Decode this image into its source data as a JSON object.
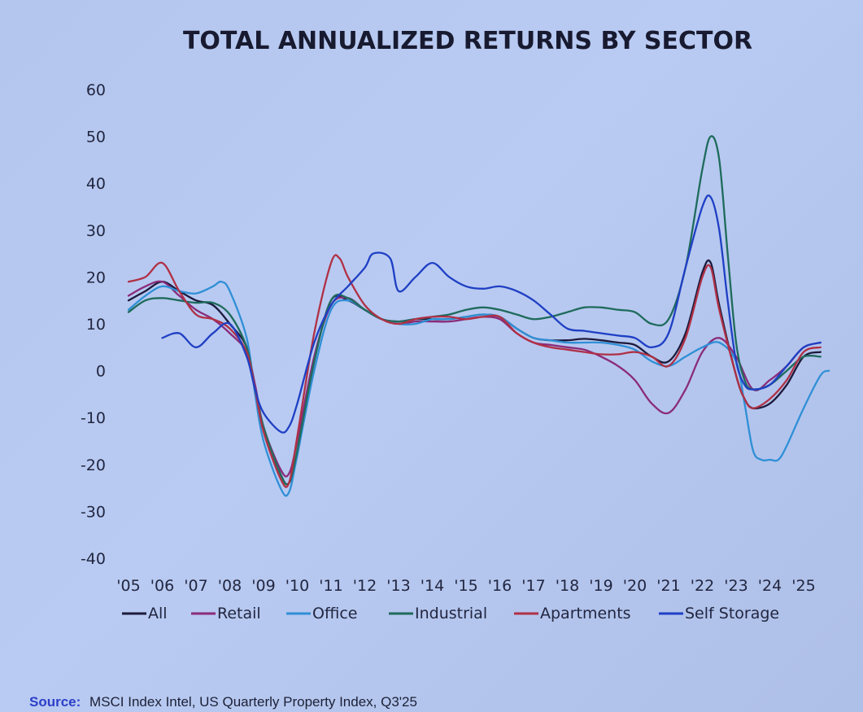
{
  "chart_data": {
    "type": "line",
    "title": "TOTAL ANNUALIZED RETURNS BY SECTOR",
    "xlabel": "",
    "ylabel": "",
    "ylim": [
      -40,
      60
    ],
    "yticks": [
      "60",
      "50",
      "40",
      "30",
      "20",
      "10",
      "0",
      "-10",
      "-20",
      "-30",
      "-40"
    ],
    "ytick_values": [
      60,
      50,
      40,
      30,
      20,
      10,
      0,
      -10,
      -20,
      -30,
      -40
    ],
    "xlim": [
      2005,
      2025.75
    ],
    "xticks": [
      "'05",
      "'06",
      "'07",
      "'08",
      "'09",
      "'10",
      "'11",
      "'12",
      "'13",
      "'14",
      "'15",
      "'16",
      "'17",
      "'18",
      "'19",
      "'20",
      "'21",
      "'22",
      "'23",
      "'24",
      "'25"
    ],
    "xtick_values": [
      2005,
      2006,
      2007,
      2008,
      2009,
      2010,
      2011,
      2012,
      2013,
      2014,
      2015,
      2016,
      2017,
      2018,
      2019,
      2020,
      2021,
      2022,
      2023,
      2024,
      2025
    ],
    "grid": false,
    "legend_position": "bottom",
    "series": [
      {
        "name": "All",
        "color": "#1c1a3c",
        "points": [
          [
            2005,
            15
          ],
          [
            2005.5,
            17
          ],
          [
            2006,
            19
          ],
          [
            2006.5,
            17
          ],
          [
            2007,
            15
          ],
          [
            2007.5,
            14
          ],
          [
            2008,
            10
          ],
          [
            2008.5,
            5
          ],
          [
            2008.75,
            -4
          ],
          [
            2009,
            -12
          ],
          [
            2009.5,
            -22
          ],
          [
            2009.75,
            -24
          ],
          [
            2010,
            -18
          ],
          [
            2010.5,
            2
          ],
          [
            2011,
            15
          ],
          [
            2011.5,
            15
          ],
          [
            2012,
            13
          ],
          [
            2012.5,
            11
          ],
          [
            2013,
            10.5
          ],
          [
            2013.5,
            11
          ],
          [
            2014,
            11
          ],
          [
            2014.5,
            11
          ],
          [
            2015,
            11.5
          ],
          [
            2015.5,
            12
          ],
          [
            2016,
            11.5
          ],
          [
            2016.5,
            9
          ],
          [
            2017,
            7
          ],
          [
            2017.5,
            6.5
          ],
          [
            2018,
            6.5
          ],
          [
            2018.5,
            6.8
          ],
          [
            2019,
            6.5
          ],
          [
            2019.5,
            6
          ],
          [
            2020,
            5.5
          ],
          [
            2020.5,
            3
          ],
          [
            2021,
            2
          ],
          [
            2021.5,
            8
          ],
          [
            2022,
            21
          ],
          [
            2022.25,
            23
          ],
          [
            2022.5,
            14
          ],
          [
            2023,
            -1
          ],
          [
            2023.25,
            -6
          ],
          [
            2023.5,
            -8
          ],
          [
            2024,
            -7
          ],
          [
            2024.5,
            -3
          ],
          [
            2025,
            3
          ],
          [
            2025.5,
            4
          ]
        ]
      },
      {
        "name": "Retail",
        "color": "#8a2b7a",
        "points": [
          [
            2005,
            16
          ],
          [
            2005.5,
            18
          ],
          [
            2006,
            19
          ],
          [
            2006.5,
            16
          ],
          [
            2007,
            13
          ],
          [
            2007.5,
            11
          ],
          [
            2008,
            8
          ],
          [
            2008.5,
            4
          ],
          [
            2008.75,
            -3
          ],
          [
            2009,
            -12
          ],
          [
            2009.5,
            -21
          ],
          [
            2009.75,
            -22
          ],
          [
            2010,
            -15
          ],
          [
            2010.5,
            3
          ],
          [
            2011,
            14
          ],
          [
            2011.5,
            15.5
          ],
          [
            2012,
            13
          ],
          [
            2012.5,
            11
          ],
          [
            2013,
            10
          ],
          [
            2013.5,
            10.5
          ],
          [
            2014,
            10.5
          ],
          [
            2014.5,
            10.5
          ],
          [
            2015,
            11
          ],
          [
            2015.5,
            11.5
          ],
          [
            2016,
            11
          ],
          [
            2016.5,
            8
          ],
          [
            2017,
            6
          ],
          [
            2017.5,
            5.5
          ],
          [
            2018,
            5
          ],
          [
            2018.5,
            4.5
          ],
          [
            2019,
            3
          ],
          [
            2019.5,
            1
          ],
          [
            2020,
            -2
          ],
          [
            2020.5,
            -7
          ],
          [
            2021,
            -9
          ],
          [
            2021.5,
            -4
          ],
          [
            2022,
            4
          ],
          [
            2022.5,
            7
          ],
          [
            2023,
            3
          ],
          [
            2023.5,
            -4
          ],
          [
            2024,
            -2
          ],
          [
            2024.5,
            1
          ],
          [
            2025,
            5
          ],
          [
            2025.5,
            6
          ]
        ]
      },
      {
        "name": "Office",
        "color": "#2f8fd6",
        "points": [
          [
            2005,
            13
          ],
          [
            2005.5,
            16
          ],
          [
            2006,
            18
          ],
          [
            2006.5,
            17
          ],
          [
            2007,
            16.5
          ],
          [
            2007.5,
            18
          ],
          [
            2007.75,
            19
          ],
          [
            2008,
            17
          ],
          [
            2008.5,
            7
          ],
          [
            2008.75,
            -5
          ],
          [
            2009,
            -15
          ],
          [
            2009.5,
            -25
          ],
          [
            2009.75,
            -26
          ],
          [
            2010,
            -18
          ],
          [
            2010.5,
            0
          ],
          [
            2011,
            13
          ],
          [
            2011.5,
            15
          ],
          [
            2012,
            13
          ],
          [
            2012.5,
            11
          ],
          [
            2013,
            10
          ],
          [
            2013.5,
            10
          ],
          [
            2014,
            11
          ],
          [
            2014.5,
            11
          ],
          [
            2015,
            11.5
          ],
          [
            2015.5,
            12
          ],
          [
            2016,
            11.5
          ],
          [
            2016.5,
            9
          ],
          [
            2017,
            7
          ],
          [
            2017.5,
            6.5
          ],
          [
            2018,
            6
          ],
          [
            2018.5,
            6
          ],
          [
            2019,
            6
          ],
          [
            2019.5,
            5.5
          ],
          [
            2020,
            4.5
          ],
          [
            2020.5,
            2
          ],
          [
            2021,
            1
          ],
          [
            2021.5,
            3
          ],
          [
            2022,
            5
          ],
          [
            2022.5,
            6
          ],
          [
            2023,
            2
          ],
          [
            2023.25,
            -7
          ],
          [
            2023.5,
            -17
          ],
          [
            2023.75,
            -19
          ],
          [
            2024,
            -19
          ],
          [
            2024.25,
            -19
          ],
          [
            2024.5,
            -16
          ],
          [
            2025,
            -8
          ],
          [
            2025.5,
            -1
          ],
          [
            2025.75,
            0
          ]
        ]
      },
      {
        "name": "Industrial",
        "color": "#1f6b5c",
        "points": [
          [
            2005,
            12.5
          ],
          [
            2005.5,
            15
          ],
          [
            2006,
            15.5
          ],
          [
            2006.5,
            15
          ],
          [
            2007,
            14.5
          ],
          [
            2007.5,
            14.5
          ],
          [
            2008,
            12
          ],
          [
            2008.5,
            5
          ],
          [
            2008.75,
            -4
          ],
          [
            2009,
            -12
          ],
          [
            2009.5,
            -22
          ],
          [
            2009.75,
            -24
          ],
          [
            2010,
            -17
          ],
          [
            2010.5,
            2
          ],
          [
            2011,
            15
          ],
          [
            2011.5,
            15.5
          ],
          [
            2012,
            13
          ],
          [
            2012.5,
            11
          ],
          [
            2013,
            10.5
          ],
          [
            2013.5,
            11
          ],
          [
            2014,
            11.5
          ],
          [
            2014.5,
            12
          ],
          [
            2015,
            13
          ],
          [
            2015.5,
            13.5
          ],
          [
            2016,
            13
          ],
          [
            2016.5,
            12
          ],
          [
            2017,
            11
          ],
          [
            2017.5,
            11.5
          ],
          [
            2018,
            12.5
          ],
          [
            2018.5,
            13.5
          ],
          [
            2019,
            13.5
          ],
          [
            2019.5,
            13
          ],
          [
            2020,
            12.5
          ],
          [
            2020.5,
            10
          ],
          [
            2021,
            11
          ],
          [
            2021.5,
            22
          ],
          [
            2022,
            43
          ],
          [
            2022.25,
            50
          ],
          [
            2022.5,
            45
          ],
          [
            2022.75,
            25
          ],
          [
            2023,
            6
          ],
          [
            2023.25,
            -2
          ],
          [
            2023.5,
            -4
          ],
          [
            2024,
            -3
          ],
          [
            2024.5,
            0
          ],
          [
            2025,
            3
          ],
          [
            2025.5,
            3
          ]
        ]
      },
      {
        "name": "Apartments",
        "color": "#b03045",
        "points": [
          [
            2005,
            19
          ],
          [
            2005.5,
            20
          ],
          [
            2006,
            23
          ],
          [
            2006.5,
            17
          ],
          [
            2007,
            12
          ],
          [
            2007.5,
            11
          ],
          [
            2008,
            9
          ],
          [
            2008.5,
            4
          ],
          [
            2008.75,
            -4
          ],
          [
            2009,
            -13
          ],
          [
            2009.5,
            -23
          ],
          [
            2009.75,
            -24
          ],
          [
            2010,
            -14
          ],
          [
            2010.5,
            8
          ],
          [
            2011,
            23
          ],
          [
            2011.25,
            24
          ],
          [
            2011.5,
            20
          ],
          [
            2012,
            14
          ],
          [
            2012.5,
            11
          ],
          [
            2013,
            10
          ],
          [
            2013.5,
            11
          ],
          [
            2014,
            11.5
          ],
          [
            2014.5,
            11.5
          ],
          [
            2015,
            11
          ],
          [
            2015.5,
            11.5
          ],
          [
            2016,
            11.5
          ],
          [
            2016.5,
            8
          ],
          [
            2017,
            6
          ],
          [
            2017.5,
            5
          ],
          [
            2018,
            4.5
          ],
          [
            2018.5,
            4
          ],
          [
            2019,
            3.5
          ],
          [
            2019.5,
            3.5
          ],
          [
            2020,
            4
          ],
          [
            2020.5,
            3
          ],
          [
            2021,
            1
          ],
          [
            2021.5,
            7
          ],
          [
            2022,
            20
          ],
          [
            2022.25,
            22
          ],
          [
            2022.5,
            13
          ],
          [
            2023,
            -1
          ],
          [
            2023.25,
            -6
          ],
          [
            2023.5,
            -8
          ],
          [
            2024,
            -6
          ],
          [
            2024.5,
            -2
          ],
          [
            2025,
            4
          ],
          [
            2025.5,
            5
          ]
        ]
      },
      {
        "name": "Self Storage",
        "color": "#1f3fc4",
        "points": [
          [
            2006,
            7
          ],
          [
            2006.5,
            8
          ],
          [
            2007,
            5
          ],
          [
            2007.5,
            8
          ],
          [
            2008,
            10
          ],
          [
            2008.5,
            3
          ],
          [
            2008.75,
            -4
          ],
          [
            2009,
            -9
          ],
          [
            2009.5,
            -13
          ],
          [
            2009.75,
            -12
          ],
          [
            2010,
            -7
          ],
          [
            2010.5,
            6
          ],
          [
            2011,
            14
          ],
          [
            2011.5,
            18
          ],
          [
            2012,
            22
          ],
          [
            2012.25,
            25
          ],
          [
            2012.75,
            24
          ],
          [
            2013,
            17
          ],
          [
            2013.5,
            20
          ],
          [
            2014,
            23
          ],
          [
            2014.5,
            20
          ],
          [
            2015,
            18
          ],
          [
            2015.5,
            17.5
          ],
          [
            2016,
            18
          ],
          [
            2016.5,
            17
          ],
          [
            2017,
            15
          ],
          [
            2017.5,
            12
          ],
          [
            2018,
            9
          ],
          [
            2018.5,
            8.5
          ],
          [
            2019,
            8
          ],
          [
            2019.5,
            7.5
          ],
          [
            2020,
            7
          ],
          [
            2020.5,
            5
          ],
          [
            2021,
            8
          ],
          [
            2021.5,
            22
          ],
          [
            2022,
            35
          ],
          [
            2022.25,
            37
          ],
          [
            2022.5,
            30
          ],
          [
            2022.75,
            15
          ],
          [
            2023,
            2
          ],
          [
            2023.25,
            -3
          ],
          [
            2023.5,
            -4
          ],
          [
            2024,
            -3
          ],
          [
            2024.5,
            1
          ],
          [
            2025,
            5
          ],
          [
            2025.5,
            6
          ]
        ]
      }
    ]
  },
  "source": {
    "prefix": "Source:",
    "text": "MSCI Index Intel, US Quarterly Property Index, Q3'25"
  }
}
